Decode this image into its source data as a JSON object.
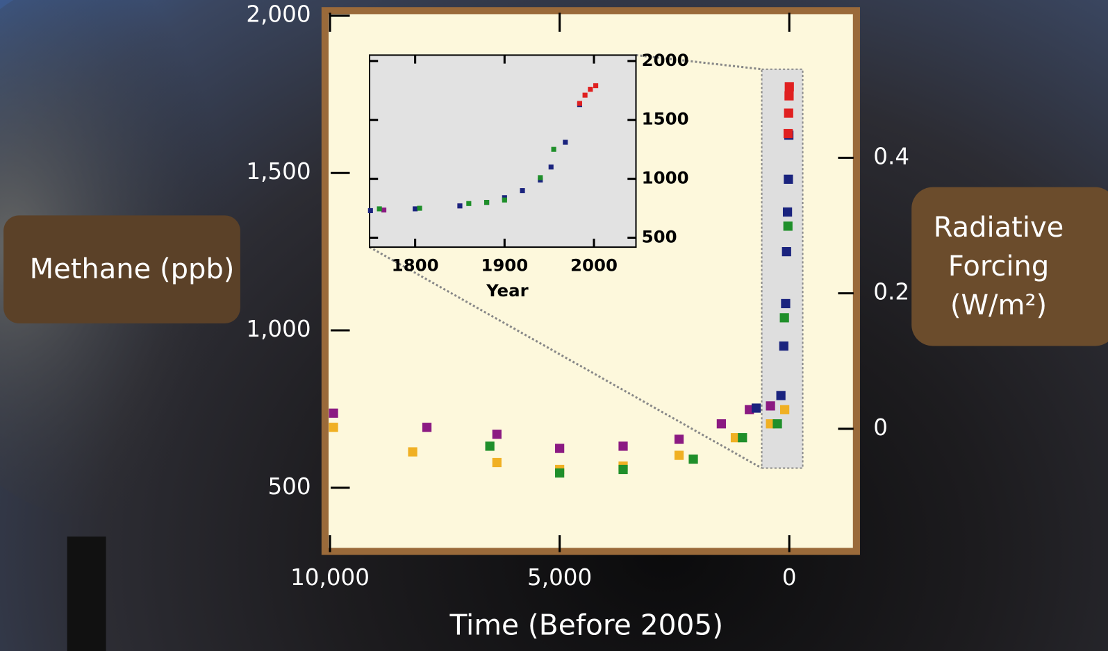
{
  "chart_data": [
    {
      "type": "scatter",
      "x_label": "Time (Before 2005)",
      "y_label": "Methane (ppb)",
      "y2_label": "Radiative Forcing (W/m²)",
      "xlim": [
        10000,
        -1400
      ],
      "xticks": [
        {
          "value": 10000,
          "label": "10,000"
        },
        {
          "value": 5000,
          "label": "5,000"
        },
        0
      ],
      "ylim": [
        300,
        2000
      ],
      "yticks": [
        500,
        {
          "value": 1000,
          "label": "1,000"
        },
        {
          "value": 1500,
          "label": "1,500"
        },
        {
          "value": 2000,
          "label": "2,000"
        }
      ],
      "y2lim": [
        -0.18,
        0.61
      ],
      "y2ticks": [
        0,
        0.2,
        0.4
      ],
      "series": [
        {
          "color": "#8b1a82",
          "x": [
            9924,
            7890,
            6366,
            5000,
            3618,
            2400,
            1480,
            870,
            410
          ],
          "values": [
            737,
            692,
            670,
            625,
            632,
            654,
            703,
            748,
            760
          ]
        },
        {
          "color": "#f0b023",
          "x": [
            9924,
            8200,
            6366,
            5000,
            3618,
            2400,
            1175,
            410,
            100
          ],
          "values": [
            692,
            614,
            580,
            558,
            569,
            603,
            659,
            703,
            748
          ]
        },
        {
          "color": "#1f8f2a",
          "x": [
            6520,
            5000,
            3618,
            2090,
            1020,
            260,
            107,
            30
          ],
          "values": [
            632,
            547,
            558,
            591,
            659,
            703,
            1040,
            1331
          ]
        },
        {
          "color": "#1a237e",
          "x": [
            720,
            183,
            120,
            80,
            60,
            40,
            20,
            10
          ],
          "values": [
            753,
            793,
            950,
            1085,
            1250,
            1376,
            1480,
            1620
          ]
        },
        {
          "color": "#e02020",
          "x": [
            25,
            15,
            5,
            0
          ],
          "values": [
            1625,
            1690,
            1745,
            1774
          ]
        }
      ]
    },
    {
      "type": "scatter",
      "x_label": "Year",
      "xlim": [
        1749,
        2047
      ],
      "xticks": [
        1800,
        1900,
        2000
      ],
      "ylim": [
        420,
        2050
      ],
      "yticks": [
        500,
        1000,
        1500,
        2000
      ],
      "series": [
        {
          "color": "#8b1a82",
          "x": [
            1765,
            1850
          ],
          "values": [
            735,
            770
          ]
        },
        {
          "color": "#1a237e",
          "x": [
            1750,
            1800,
            1850,
            1880,
            1900,
            1920,
            1940,
            1952,
            1968,
            1984
          ],
          "values": [
            730,
            745,
            770,
            800,
            840,
            900,
            990,
            1100,
            1310,
            1630
          ]
        },
        {
          "color": "#1f8f2a",
          "x": [
            1760,
            1805,
            1860,
            1880,
            1900,
            1940,
            1955
          ],
          "values": [
            745,
            750,
            790,
            800,
            820,
            1010,
            1250
          ]
        },
        {
          "color": "#e02020",
          "x": [
            1984,
            1990,
            1996,
            2002
          ],
          "values": [
            1640,
            1710,
            1760,
            1790
          ]
        }
      ]
    }
  ]
}
